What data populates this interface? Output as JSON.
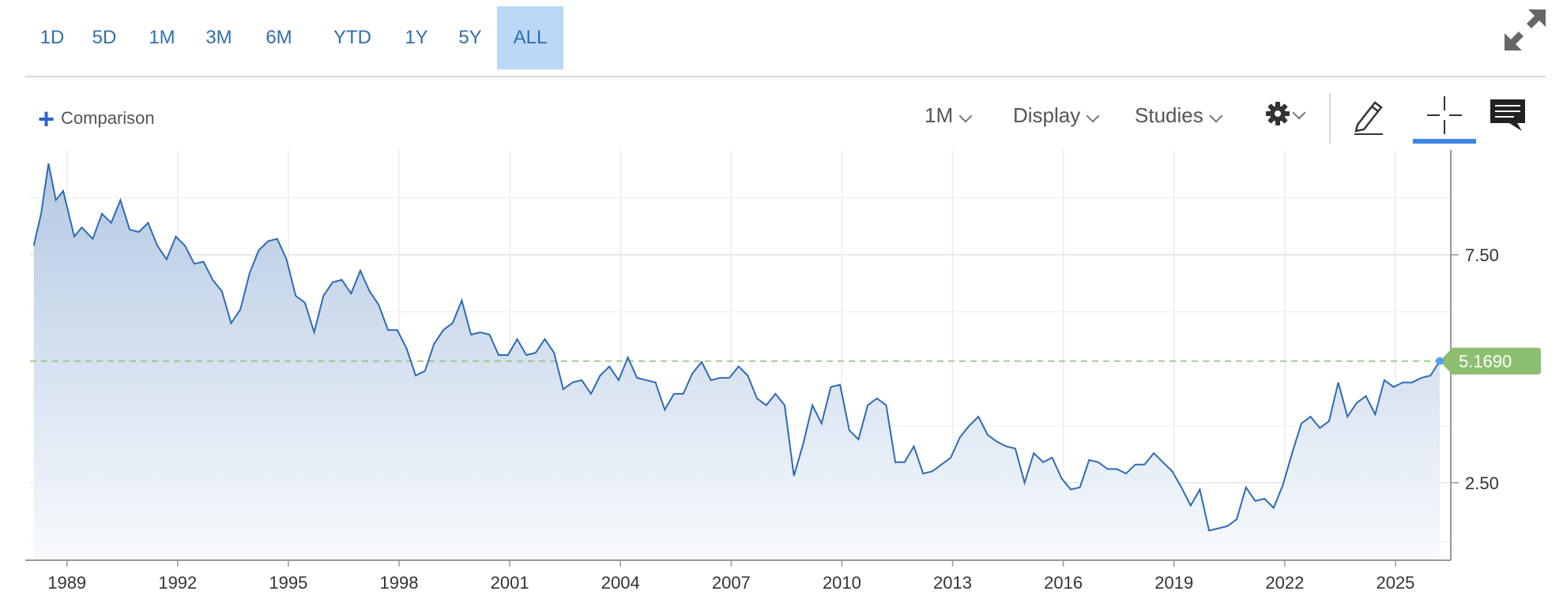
{
  "range_buttons": [
    {
      "label": "1D",
      "active": false
    },
    {
      "label": "5D",
      "active": false
    },
    {
      "label": "1M",
      "active": false
    },
    {
      "label": "3M",
      "active": false
    },
    {
      "label": "6M",
      "active": false
    },
    {
      "label": "YTD",
      "active": false
    },
    {
      "label": "1Y",
      "active": false
    },
    {
      "label": "5Y",
      "active": false
    },
    {
      "label": "ALL",
      "active": true
    }
  ],
  "toolbar": {
    "comparison_label": "Comparison",
    "interval_label": "1M",
    "display_label": "Display",
    "studies_label": "Studies",
    "icons": [
      "expand-icon",
      "plus-icon",
      "gear-icon",
      "pencil-icon",
      "crosshair-icon",
      "comment-icon"
    ]
  },
  "colors": {
    "accent": "#2f6fae",
    "line": "#2d6bb3",
    "area_top": "#b4c9e3",
    "area_bottom": "#f8fafd",
    "active_range_bg": "#bcd8f7",
    "last_price_badge": "#8cbf6f",
    "crosshair_underline": "#3d85e6"
  },
  "chart_data": {
    "type": "area",
    "title": "",
    "xlabel": "",
    "ylabel": "",
    "x_ticks": [
      "1989",
      "1992",
      "1995",
      "1998",
      "2001",
      "2004",
      "2007",
      "2010",
      "2013",
      "2016",
      "2019",
      "2022",
      "2025"
    ],
    "y_ticks": [
      "2.50",
      "7.50"
    ],
    "ylim": [
      0.8,
      9.8
    ],
    "xlim": [
      1988.0,
      2026.5
    ],
    "grid": true,
    "last_value": 5.169,
    "last_value_label": "5.1690",
    "series": [
      {
        "x": [
          1988.1,
          1988.3,
          1988.5,
          1988.7,
          1988.9,
          1989.2,
          1989.4,
          1989.7,
          1989.95,
          1990.2,
          1990.45,
          1990.7,
          1990.95,
          1991.2,
          1991.45,
          1991.7,
          1991.95,
          1992.2,
          1992.45,
          1992.7,
          1992.95,
          1993.2,
          1993.45,
          1993.7,
          1993.95,
          1994.2,
          1994.45,
          1994.7,
          1994.95,
          1995.2,
          1995.45,
          1995.7,
          1995.95,
          1996.2,
          1996.45,
          1996.7,
          1996.95,
          1997.2,
          1997.45,
          1997.7,
          1997.95,
          1998.2,
          1998.45,
          1998.7,
          1998.95,
          1999.2,
          1999.45,
          1999.7,
          1999.95,
          2000.2,
          2000.45,
          2000.7,
          2000.95,
          2001.2,
          2001.45,
          2001.7,
          2001.95,
          2002.2,
          2002.45,
          2002.7,
          2002.95,
          2003.2,
          2003.45,
          2003.7,
          2003.95,
          2004.2,
          2004.45,
          2004.7,
          2004.95,
          2005.2,
          2005.45,
          2005.7,
          2005.95,
          2006.2,
          2006.45,
          2006.7,
          2006.95,
          2007.2,
          2007.45,
          2007.7,
          2007.95,
          2008.2,
          2008.45,
          2008.7,
          2008.95,
          2009.2,
          2009.45,
          2009.7,
          2009.95,
          2010.2,
          2010.45,
          2010.7,
          2010.95,
          2011.2,
          2011.45,
          2011.7,
          2011.95,
          2012.2,
          2012.45,
          2012.7,
          2012.95,
          2013.2,
          2013.45,
          2013.7,
          2013.95,
          2014.2,
          2014.45,
          2014.7,
          2014.95,
          2015.2,
          2015.45,
          2015.7,
          2015.95,
          2016.2,
          2016.45,
          2016.7,
          2016.95,
          2017.2,
          2017.45,
          2017.7,
          2017.95,
          2018.2,
          2018.45,
          2018.7,
          2018.95,
          2019.2,
          2019.45,
          2019.7,
          2019.95,
          2020.2,
          2020.45,
          2020.7,
          2020.95,
          2021.2,
          2021.45,
          2021.7,
          2021.95,
          2022.2,
          2022.45,
          2022.7,
          2022.95,
          2023.2,
          2023.45,
          2023.7,
          2023.95,
          2024.2,
          2024.45,
          2024.7,
          2024.95,
          2025.2,
          2025.45,
          2025.7,
          2025.95,
          2026.2
        ],
        "values": [
          7.7,
          8.4,
          9.5,
          8.7,
          8.9,
          7.9,
          8.1,
          7.85,
          8.4,
          8.2,
          8.7,
          8.05,
          8.0,
          8.2,
          7.7,
          7.4,
          7.9,
          7.7,
          7.3,
          7.35,
          6.95,
          6.7,
          6.0,
          6.3,
          7.1,
          7.6,
          7.8,
          7.85,
          7.4,
          6.6,
          6.45,
          5.8,
          6.6,
          6.9,
          6.95,
          6.65,
          7.15,
          6.7,
          6.4,
          5.85,
          5.85,
          5.45,
          4.85,
          4.95,
          5.55,
          5.85,
          6.0,
          6.5,
          5.75,
          5.8,
          5.75,
          5.3,
          5.3,
          5.65,
          5.3,
          5.35,
          5.65,
          5.35,
          4.55,
          4.7,
          4.75,
          4.45,
          4.85,
          5.05,
          4.75,
          5.25,
          4.8,
          4.75,
          4.7,
          4.1,
          4.45,
          4.45,
          4.9,
          5.15,
          4.75,
          4.8,
          4.8,
          5.05,
          4.85,
          4.35,
          4.2,
          4.45,
          4.2,
          2.65,
          3.35,
          4.2,
          3.8,
          4.6,
          4.65,
          3.65,
          3.45,
          4.2,
          4.35,
          4.2,
          2.95,
          2.95,
          3.3,
          2.7,
          2.75,
          2.9,
          3.05,
          3.5,
          3.75,
          3.95,
          3.55,
          3.4,
          3.3,
          3.25,
          2.5,
          3.15,
          2.95,
          3.05,
          2.6,
          2.35,
          2.4,
          3.0,
          2.95,
          2.8,
          2.8,
          2.7,
          2.9,
          2.9,
          3.15,
          2.95,
          2.75,
          2.4,
          2.0,
          2.35,
          1.45,
          1.5,
          1.55,
          1.7,
          2.4,
          2.1,
          2.15,
          1.95,
          2.45,
          3.15,
          3.8,
          3.95,
          3.7,
          3.85,
          4.7,
          3.95,
          4.25,
          4.4,
          4.0,
          4.75,
          4.6,
          4.7,
          4.7,
          4.8,
          4.85,
          5.169
        ]
      }
    ]
  }
}
